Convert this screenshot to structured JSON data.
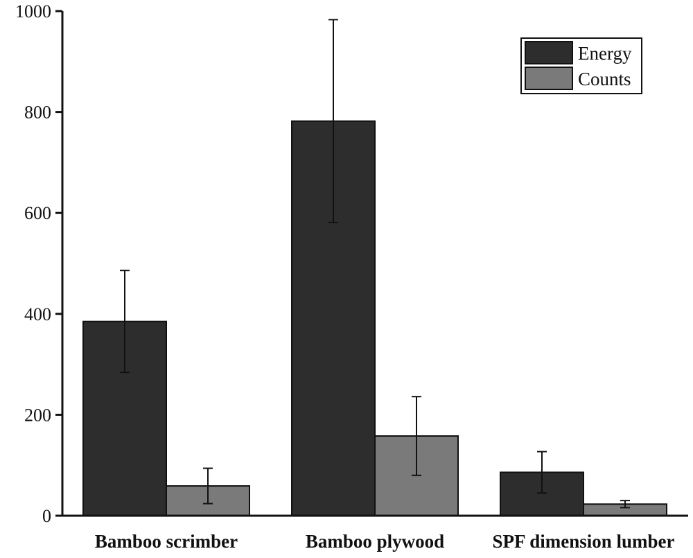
{
  "chart_data": {
    "type": "bar",
    "title": "",
    "xlabel": "",
    "ylabel": "",
    "ylim": [
      0,
      1000
    ],
    "yticks": [
      0,
      200,
      400,
      600,
      800,
      1000
    ],
    "categories": [
      "Bamboo scrimber",
      "Bamboo plywood",
      "SPF dimension lumber"
    ],
    "series": [
      {
        "name": "Energy",
        "color": "#2d2d2d",
        "values": [
          385,
          782,
          86
        ],
        "errors": [
          101,
          201,
          41
        ]
      },
      {
        "name": "Counts",
        "color": "#7a7a7a",
        "values": [
          59,
          158,
          23
        ],
        "errors": [
          35,
          78,
          7
        ]
      }
    ],
    "legend_position": "top-right",
    "grid": false
  }
}
